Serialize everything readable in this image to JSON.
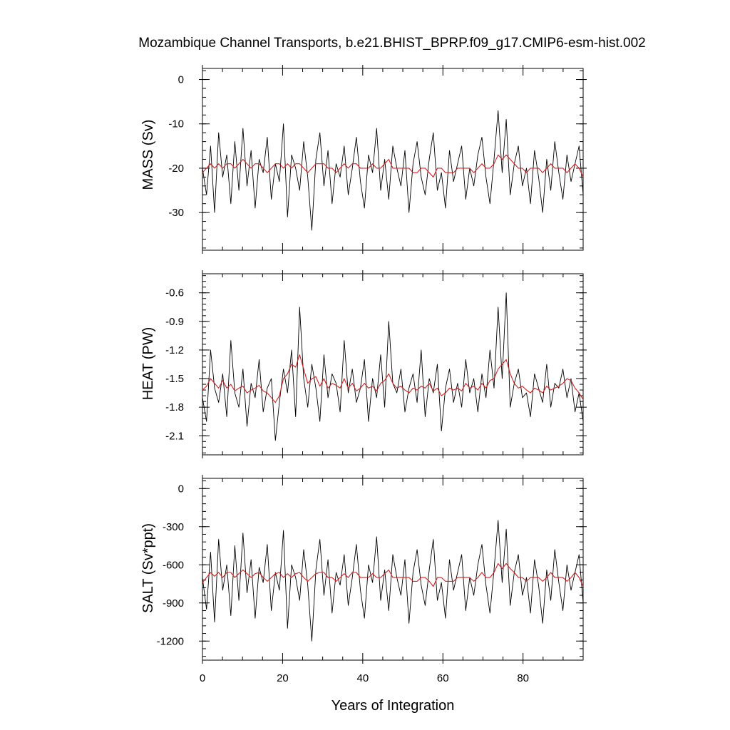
{
  "title": "Mozambique Channel Transports, b.e21.BHIST_BPRP.f09_g17.CMIP6-esm-hist.002",
  "xlabel": "Years of Integration",
  "colors": {
    "raw": "#000000",
    "smoothed": "#d62020"
  },
  "chart_data": [
    {
      "type": "line",
      "ylabel": "MASS (Sv)",
      "xlim": [
        0,
        95
      ],
      "ylim": [
        -38.5,
        2.5
      ],
      "x_ticks": [
        0,
        20,
        40,
        60,
        80
      ],
      "y_ticks": [
        0,
        -10,
        -20,
        -30
      ],
      "grid": false,
      "series": [
        {
          "values": [
            -20,
            -26,
            -15,
            -30,
            -12,
            -22,
            -17,
            -28,
            -14,
            -25,
            -11,
            -24,
            -16,
            -29,
            -18,
            -21,
            -13,
            -27,
            -19,
            -23,
            -10,
            -31,
            -17,
            -20,
            -25,
            -14,
            -22,
            -34,
            -18,
            -12,
            -24,
            -16,
            -28,
            -19,
            -22,
            -15,
            -26,
            -20,
            -13,
            -23,
            -29,
            -17,
            -21,
            -11,
            -25,
            -18,
            -27,
            -15,
            -20,
            -24,
            -16,
            -30,
            -19,
            -14,
            -22,
            -26,
            -18,
            -12,
            -25,
            -21,
            -29,
            -16,
            -23,
            -19,
            -15,
            -27,
            -20,
            -24,
            -17,
            -13,
            -22,
            -28,
            -18,
            -7,
            -21,
            -9,
            -26,
            -19,
            -15,
            -24,
            -20,
            -28,
            -16,
            -22,
            -30,
            -18,
            -25,
            -14,
            -21,
            -27,
            -17,
            -23,
            -19,
            -15,
            -26
          ],
          "smoothed": [
            -21,
            -20,
            -19,
            -20,
            -19,
            -20,
            -19,
            -19,
            -20,
            -19,
            -18,
            -19,
            -20,
            -19,
            -19,
            -20,
            -21,
            -20,
            -19,
            -19,
            -20,
            -19,
            -20,
            -19,
            -19,
            -20,
            -21,
            -20,
            -19,
            -19,
            -19,
            -20,
            -20,
            -21,
            -20,
            -19,
            -20,
            -19,
            -19,
            -20,
            -20,
            -20,
            -19,
            -20,
            -20,
            -19,
            -18,
            -20,
            -20,
            -20,
            -20,
            -20,
            -21,
            -21,
            -20,
            -20,
            -21,
            -22,
            -20,
            -20,
            -21,
            -21,
            -21,
            -20,
            -20,
            -20,
            -20,
            -21,
            -20,
            -19,
            -20,
            -20,
            -19,
            -17,
            -18,
            -17,
            -18,
            -19,
            -20,
            -20,
            -21,
            -20,
            -20,
            -20,
            -21,
            -20,
            -19,
            -20,
            -20,
            -20,
            -21,
            -20,
            -19,
            -20,
            -22
          ]
        }
      ]
    },
    {
      "type": "line",
      "ylabel": "HEAT (PW)",
      "xlim": [
        0,
        95
      ],
      "ylim": [
        -2.3,
        -0.4
      ],
      "x_ticks": [
        0,
        20,
        40,
        60,
        80
      ],
      "y_ticks": [
        -0.6,
        -0.9,
        -1.2,
        -1.5,
        -1.8,
        -2.1
      ],
      "grid": false,
      "series": [
        {
          "values": [
            -1.7,
            -1.95,
            -1.2,
            -1.6,
            -1.75,
            -1.45,
            -1.9,
            -1.1,
            -1.65,
            -1.8,
            -1.4,
            -2.0,
            -1.55,
            -1.7,
            -1.3,
            -1.85,
            -1.6,
            -1.5,
            -2.15,
            -1.75,
            -1.4,
            -1.65,
            -1.2,
            -1.9,
            -0.75,
            -1.5,
            -1.8,
            -1.35,
            -1.6,
            -1.95,
            -1.25,
            -1.7,
            -1.45,
            -1.55,
            -1.85,
            -1.1,
            -1.65,
            -1.4,
            -1.75,
            -1.6,
            -1.3,
            -1.95,
            -1.5,
            -1.7,
            -1.25,
            -1.8,
            -0.9,
            -1.55,
            -1.65,
            -1.4,
            -1.85,
            -1.6,
            -1.45,
            -1.75,
            -1.2,
            -1.9,
            -1.5,
            -1.65,
            -1.35,
            -2.05,
            -1.6,
            -1.4,
            -1.75,
            -1.55,
            -1.8,
            -1.3,
            -1.65,
            -1.5,
            -1.85,
            -1.45,
            -1.7,
            -1.2,
            -1.6,
            -0.75,
            -1.5,
            -0.6,
            -1.8,
            -1.55,
            -1.4,
            -1.7,
            -1.65,
            -1.9,
            -1.45,
            -1.6,
            -1.75,
            -1.35,
            -1.8,
            -1.55,
            -1.6,
            -1.4,
            -1.7,
            -1.5,
            -1.85,
            -1.65,
            -1.95
          ],
          "smoothed": [
            -1.62,
            -1.58,
            -1.5,
            -1.55,
            -1.6,
            -1.52,
            -1.6,
            -1.56,
            -1.63,
            -1.6,
            -1.58,
            -1.65,
            -1.62,
            -1.6,
            -1.57,
            -1.63,
            -1.65,
            -1.7,
            -1.75,
            -1.68,
            -1.5,
            -1.45,
            -1.35,
            -1.38,
            -1.25,
            -1.4,
            -1.55,
            -1.5,
            -1.48,
            -1.58,
            -1.5,
            -1.6,
            -1.55,
            -1.57,
            -1.6,
            -1.5,
            -1.6,
            -1.55,
            -1.63,
            -1.6,
            -1.55,
            -1.6,
            -1.58,
            -1.63,
            -1.55,
            -1.52,
            -1.45,
            -1.55,
            -1.6,
            -1.58,
            -1.62,
            -1.65,
            -1.6,
            -1.62,
            -1.58,
            -1.6,
            -1.55,
            -1.63,
            -1.6,
            -1.68,
            -1.65,
            -1.6,
            -1.62,
            -1.6,
            -1.63,
            -1.55,
            -1.6,
            -1.58,
            -1.62,
            -1.55,
            -1.6,
            -1.52,
            -1.5,
            -1.4,
            -1.35,
            -1.3,
            -1.45,
            -1.55,
            -1.6,
            -1.58,
            -1.62,
            -1.65,
            -1.6,
            -1.62,
            -1.65,
            -1.58,
            -1.62,
            -1.6,
            -1.58,
            -1.55,
            -1.5,
            -1.52,
            -1.6,
            -1.65,
            -1.72
          ]
        }
      ]
    },
    {
      "type": "line",
      "ylabel": "SALT (Sv*ppt)",
      "xlim": [
        0,
        95
      ],
      "ylim": [
        -1350,
        80
      ],
      "x_ticks": [
        0,
        20,
        40,
        60,
        80
      ],
      "y_ticks": [
        0,
        -300,
        -600,
        -900,
        -1200
      ],
      "grid": false,
      "series": [
        {
          "values": [
            -700,
            -950,
            -500,
            -1050,
            -400,
            -800,
            -600,
            -1000,
            -450,
            -880,
            -350,
            -820,
            -560,
            -1020,
            -620,
            -740,
            -440,
            -960,
            -660,
            -800,
            -330,
            -1100,
            -600,
            -700,
            -880,
            -480,
            -760,
            -1200,
            -640,
            -400,
            -840,
            -560,
            -980,
            -660,
            -760,
            -520,
            -920,
            -700,
            -440,
            -800,
            -1020,
            -600,
            -740,
            -380,
            -880,
            -640,
            -960,
            -520,
            -700,
            -840,
            -560,
            -1060,
            -660,
            -480,
            -760,
            -920,
            -640,
            -400,
            -880,
            -740,
            -1020,
            -560,
            -800,
            -660,
            -520,
            -960,
            -700,
            -840,
            -600,
            -440,
            -760,
            -980,
            -640,
            -250,
            -740,
            -320,
            -920,
            -660,
            -520,
            -840,
            -700,
            -980,
            -560,
            -760,
            -1060,
            -640,
            -880,
            -480,
            -740,
            -960,
            -600,
            -800,
            -660,
            -520,
            -900
          ],
          "smoothed": [
            -740,
            -700,
            -660,
            -690,
            -660,
            -700,
            -660,
            -660,
            -700,
            -670,
            -640,
            -670,
            -700,
            -670,
            -660,
            -700,
            -730,
            -700,
            -670,
            -660,
            -700,
            -670,
            -700,
            -670,
            -660,
            -700,
            -730,
            -700,
            -670,
            -660,
            -660,
            -700,
            -700,
            -730,
            -700,
            -670,
            -700,
            -660,
            -660,
            -700,
            -700,
            -700,
            -670,
            -700,
            -700,
            -670,
            -640,
            -700,
            -700,
            -700,
            -700,
            -700,
            -730,
            -730,
            -700,
            -700,
            -730,
            -770,
            -700,
            -700,
            -730,
            -730,
            -730,
            -700,
            -700,
            -700,
            -700,
            -730,
            -700,
            -660,
            -700,
            -700,
            -660,
            -590,
            -630,
            -590,
            -630,
            -660,
            -700,
            -700,
            -730,
            -700,
            -700,
            -700,
            -730,
            -700,
            -660,
            -700,
            -700,
            -700,
            -730,
            -700,
            -660,
            -700,
            -770
          ]
        }
      ]
    }
  ]
}
